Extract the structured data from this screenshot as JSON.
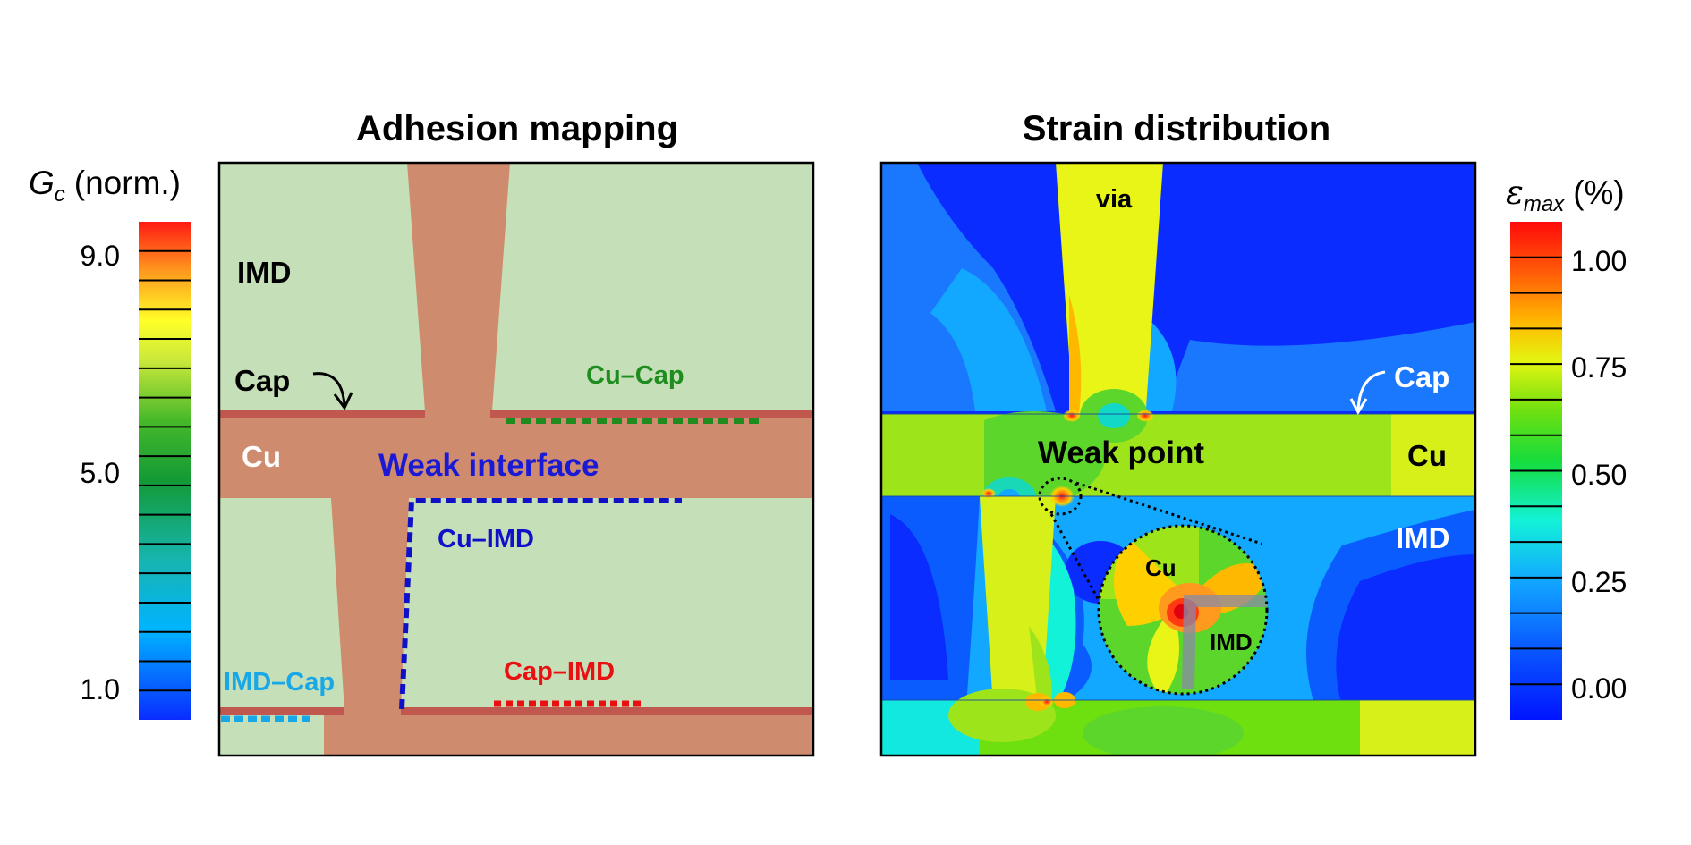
{
  "left_panel": {
    "title": "Adhesion mapping",
    "colorbar": {
      "symbol": "G",
      "subscript": "c",
      "unit": "(norm.)",
      "ticks": [
        "9.0",
        "5.0",
        "1.0"
      ]
    },
    "labels": {
      "imd": "IMD",
      "cap": "Cap",
      "cu": "Cu",
      "weak_interface": "Weak interface",
      "cu_cap": "Cu–Cap",
      "cu_imd": "Cu–IMD",
      "imd_cap": "IMD–Cap",
      "cap_imd": "Cap–IMD"
    },
    "colors": {
      "imd": "#c5e0b8",
      "cu": "#cf8b6e",
      "cap_line": "#c05850",
      "weak_interface": "#1a1ad6",
      "cu_cap": "#1e8c1e",
      "cu_imd": "#1010c8",
      "imd_cap": "#18a8e8",
      "cap_imd": "#e81010"
    }
  },
  "right_panel": {
    "title": "Strain distribution",
    "colorbar": {
      "symbol": "ε",
      "subscript": "max",
      "unit": "(%)",
      "ticks": [
        "1.00",
        "0.75",
        "0.50",
        "0.25",
        "0.00"
      ]
    },
    "labels": {
      "via": "via",
      "cap": "Cap",
      "cu": "Cu",
      "imd": "IMD",
      "weak_point": "Weak point",
      "inset_cu": "Cu",
      "inset_imd": "IMD"
    }
  }
}
